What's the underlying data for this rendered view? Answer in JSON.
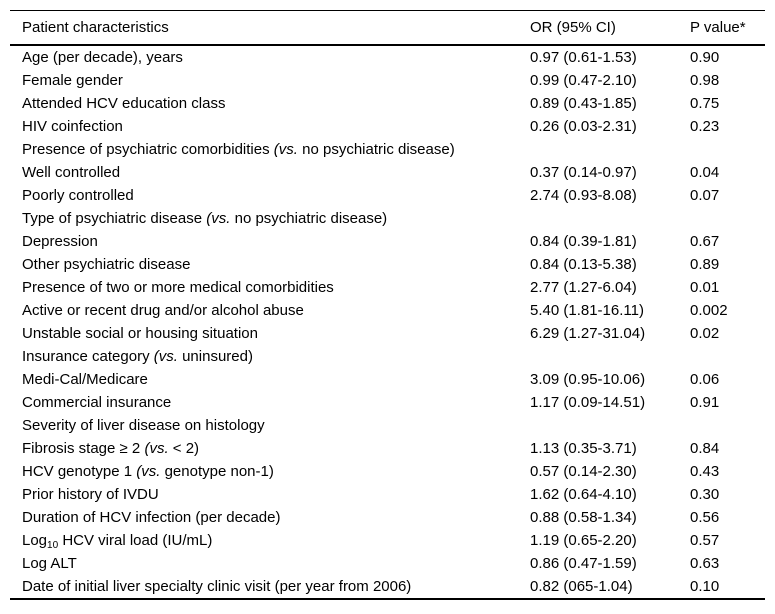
{
  "table": {
    "columns": [
      "Patient characteristics",
      "OR (95% CI)",
      "P value*"
    ],
    "rows": [
      {
        "label": [
          {
            "t": "Age (per decade), years"
          }
        ],
        "or": "0.97 (0.61-1.53)",
        "p": "0.90"
      },
      {
        "label": [
          {
            "t": "Female gender"
          }
        ],
        "or": "0.99 (0.47-2.10)",
        "p": "0.98"
      },
      {
        "label": [
          {
            "t": "Attended HCV education class"
          }
        ],
        "or": "0.89 (0.43-1.85)",
        "p": "0.75"
      },
      {
        "label": [
          {
            "t": "HIV coinfection"
          }
        ],
        "or": "0.26 (0.03-2.31)",
        "p": "0.23"
      },
      {
        "label": [
          {
            "t": "Presence of psychiatric comorbidities "
          },
          {
            "t": "(vs.",
            "style": "italic"
          },
          {
            "t": " no psychiatric disease)"
          }
        ],
        "or": "",
        "p": ""
      },
      {
        "label": [
          {
            "t": "Well controlled"
          }
        ],
        "or": "0.37 (0.14-0.97)",
        "p": "0.04"
      },
      {
        "label": [
          {
            "t": "Poorly controlled"
          }
        ],
        "or": "2.74 (0.93-8.08)",
        "p": "0.07"
      },
      {
        "label": [
          {
            "t": "Type of psychiatric disease "
          },
          {
            "t": "(vs.",
            "style": "italic"
          },
          {
            "t": " no psychiatric disease)"
          }
        ],
        "or": "",
        "p": ""
      },
      {
        "label": [
          {
            "t": "Depression"
          }
        ],
        "or": "0.84 (0.39-1.81)",
        "p": "0.67"
      },
      {
        "label": [
          {
            "t": "Other psychiatric disease"
          }
        ],
        "or": "0.84 (0.13-5.38)",
        "p": "0.89"
      },
      {
        "label": [
          {
            "t": "Presence of two or more medical comorbidities"
          }
        ],
        "or": "2.77 (1.27-6.04)",
        "p": "0.01"
      },
      {
        "label": [
          {
            "t": "Active or recent drug and/or alcohol abuse"
          }
        ],
        "or": "5.40 (1.81-16.11)",
        "p": "0.002"
      },
      {
        "label": [
          {
            "t": "Unstable social or housing situation"
          }
        ],
        "or": "6.29 (1.27-31.04)",
        "p": "0.02"
      },
      {
        "label": [
          {
            "t": "Insurance category "
          },
          {
            "t": "(vs.",
            "style": "italic"
          },
          {
            "t": " uninsured)"
          }
        ],
        "or": "",
        "p": ""
      },
      {
        "label": [
          {
            "t": "Medi-Cal/Medicare"
          }
        ],
        "or": "3.09 (0.95-10.06)",
        "p": "0.06"
      },
      {
        "label": [
          {
            "t": "Commercial insurance"
          }
        ],
        "or": "1.17 (0.09-14.51)",
        "p": "0.91"
      },
      {
        "label": [
          {
            "t": "Severity of liver disease on histology"
          }
        ],
        "or": "",
        "p": ""
      },
      {
        "label": [
          {
            "t": "Fibrosis stage ≥ 2 "
          },
          {
            "t": "(vs.",
            "style": "italic"
          },
          {
            "t": " < 2)"
          }
        ],
        "or": "1.13 (0.35-3.71)",
        "p": "0.84"
      },
      {
        "label": [
          {
            "t": "HCV genotype 1 "
          },
          {
            "t": "(vs.",
            "style": "italic"
          },
          {
            "t": " genotype non-1)"
          }
        ],
        "or": "0.57 (0.14-2.30)",
        "p": "0.43"
      },
      {
        "label": [
          {
            "t": "Prior history of IVDU"
          }
        ],
        "or": "1.62 (0.64-4.10)",
        "p": "0.30"
      },
      {
        "label": [
          {
            "t": "Duration of HCV infection (per decade)"
          }
        ],
        "or": "0.88 (0.58-1.34)",
        "p": "0.56"
      },
      {
        "label": [
          {
            "t": "Log"
          },
          {
            "t": "10",
            "style": "sub"
          },
          {
            "t": " HCV viral load (IU/mL)"
          }
        ],
        "or": "1.19 (0.65-2.20)",
        "p": "0.57"
      },
      {
        "label": [
          {
            "t": "Log ALT"
          }
        ],
        "or": "0.86 (0.47-1.59)",
        "p": "0.63"
      },
      {
        "label": [
          {
            "t": "Date of initial liver specialty clinic visit (per year from 2006)"
          }
        ],
        "or": "0.82 (065-1.04)",
        "p": "0.10"
      }
    ]
  }
}
